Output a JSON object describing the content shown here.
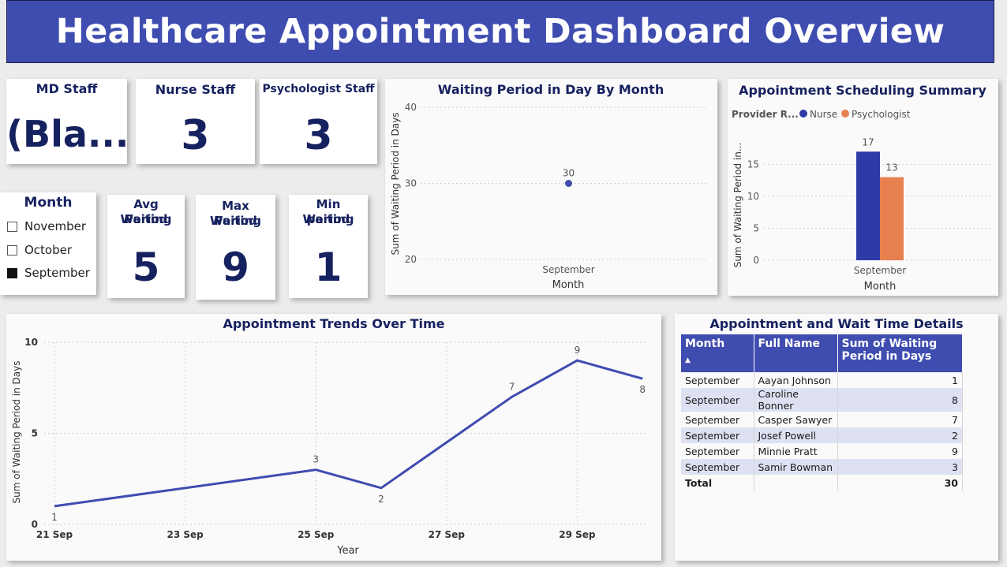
{
  "header": {
    "title": "Healthcare Appointment Dashboard Overview"
  },
  "kpis": {
    "md_staff": {
      "label": "MD Staff",
      "value": "(Bla..."
    },
    "nurse_staff": {
      "label": "Nurse Staff",
      "value": "3"
    },
    "psychologist_staff": {
      "label": "Psychologist Staff",
      "value": "3"
    },
    "avg_waiting": {
      "label_line1": "Avg Waiting",
      "label_line2": "Period",
      "value": "5"
    },
    "max_waiting": {
      "label_line1": "Max Waiting",
      "label_line2": "Period",
      "value": "9"
    },
    "min_waiting": {
      "label_line1": "Min Waiting",
      "label_line2": "period",
      "value": "1"
    }
  },
  "month_slicer": {
    "title": "Month",
    "options": [
      {
        "label": "November",
        "checked": false
      },
      {
        "label": "October",
        "checked": false
      },
      {
        "label": "September",
        "checked": true
      }
    ]
  },
  "colors": {
    "primary": "#3f4cb0",
    "nurse": "#2e3aa8",
    "psychologist": "#e8804f",
    "title_text": "#16215f"
  },
  "chart_data": [
    {
      "id": "waiting_by_month",
      "type": "scatter",
      "title": "Waiting Period in Day By Month",
      "xlabel": "Month",
      "ylabel": "Sum of Waiting Period in Days",
      "categories": [
        "September"
      ],
      "values": [
        30
      ],
      "data_labels": [
        "30"
      ],
      "ylim": [
        20,
        40
      ],
      "yticks": [
        "20",
        "30",
        "40"
      ],
      "grid": true
    },
    {
      "id": "scheduling_summary",
      "type": "bar",
      "title": "Appointment Scheduling Summary",
      "legend_title": "Provider R...",
      "xlabel": "Month",
      "ylabel": "Sum of Waiting Period in...",
      "categories": [
        "September"
      ],
      "series": [
        {
          "name": "Nurse",
          "values": [
            17
          ],
          "color": "#2e3aa8"
        },
        {
          "name": "Psychologist",
          "values": [
            13
          ],
          "color": "#e8804f"
        }
      ],
      "ylim": [
        0,
        20
      ],
      "yticks": [
        "0",
        "5",
        "10",
        "15"
      ],
      "legend_position": "top-left",
      "grid": true
    },
    {
      "id": "trends",
      "type": "line",
      "title": "Appointment Trends Over Time",
      "xlabel": "Year",
      "ylabel": "Sum of Waiting Period in Days",
      "x": [
        "2024-09-21",
        "2024-09-25",
        "2024-09-26",
        "2024-09-28",
        "2024-09-29",
        "2024-09-30"
      ],
      "values": [
        1,
        3,
        2,
        7,
        9,
        8
      ],
      "data_labels": [
        "1",
        "3",
        "2",
        "7",
        "9",
        "8"
      ],
      "xticks": [
        "21 Sep",
        "23 Sep",
        "25 Sep",
        "27 Sep",
        "29 Sep"
      ],
      "yticks": [
        "0",
        "5",
        "10"
      ],
      "ylim": [
        0,
        10
      ],
      "grid": true
    }
  ],
  "details_table": {
    "title": "Appointment and Wait Time Details",
    "columns": [
      "Month",
      "Full Name",
      "Sum of Waiting Period in Days"
    ],
    "rows": [
      [
        "September",
        "Aayan Johnson",
        "1"
      ],
      [
        "September",
        "Caroline Bonner",
        "8"
      ],
      [
        "September",
        "Casper Sawyer",
        "7"
      ],
      [
        "September",
        "Josef Powell",
        "2"
      ],
      [
        "September",
        "Minnie Pratt",
        "9"
      ],
      [
        "September",
        "Samir Bowman",
        "3"
      ]
    ],
    "total_label": "Total",
    "total_value": "30"
  }
}
